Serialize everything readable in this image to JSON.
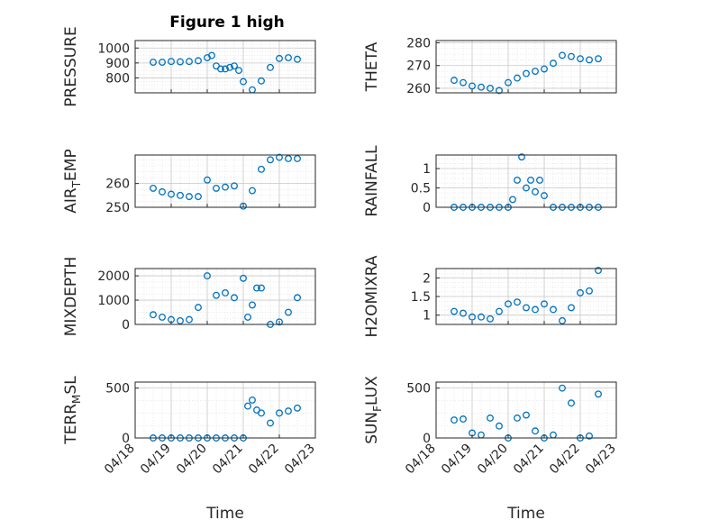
{
  "figure": {
    "title": "Figure 1 high"
  },
  "styles": {
    "marker_color": "#0072BD",
    "axis_color": "#262626",
    "grid_color": "#dcdcdc"
  },
  "chart_data": [
    {
      "id": "pressure",
      "type": "scatter",
      "ylabel": "PRESSURE",
      "ylim": [
        700,
        1050
      ],
      "yticks": [
        800,
        900,
        1000
      ],
      "xlim": [
        "04/18",
        "04/23"
      ],
      "xticks": [
        "04/18",
        "04/19",
        "04/20",
        "04/21",
        "04/22",
        "04/23"
      ],
      "show_xticklabels": false,
      "grid": true,
      "minor_grid": true,
      "x": [
        "04/18 12:00",
        "04/18 18:00",
        "04/19 00:00",
        "04/19 06:00",
        "04/19 12:00",
        "04/19 18:00",
        "04/20 00:00",
        "04/20 03:00",
        "04/20 06:00",
        "04/20 09:00",
        "04/20 12:00",
        "04/20 15:00",
        "04/20 18:00",
        "04/20 21:00",
        "04/21 00:00",
        "04/21 06:00",
        "04/21 12:00",
        "04/21 18:00",
        "04/22 00:00",
        "04/22 06:00",
        "04/22 12:00"
      ],
      "y": [
        905,
        905,
        910,
        908,
        910,
        915,
        935,
        950,
        880,
        860,
        860,
        870,
        880,
        850,
        775,
        720,
        780,
        870,
        930,
        935,
        925
      ]
    },
    {
      "id": "theta",
      "type": "scatter",
      "ylabel": "THETA",
      "ylim": [
        258,
        281
      ],
      "yticks": [
        260,
        270,
        280
      ],
      "xlim": [
        "04/18",
        "04/23"
      ],
      "xticks": [
        "04/18",
        "04/19",
        "04/20",
        "04/21",
        "04/22",
        "04/23"
      ],
      "show_xticklabels": false,
      "grid": true,
      "minor_grid": true,
      "x": [
        "04/18 12:00",
        "04/18 18:00",
        "04/19 00:00",
        "04/19 06:00",
        "04/19 12:00",
        "04/19 18:00",
        "04/20 00:00",
        "04/20 06:00",
        "04/20 12:00",
        "04/20 18:00",
        "04/21 00:00",
        "04/21 06:00",
        "04/21 12:00",
        "04/21 18:00",
        "04/22 00:00",
        "04/22 06:00",
        "04/22 12:00"
      ],
      "y": [
        263.5,
        262.5,
        261,
        260.5,
        260,
        259,
        262.5,
        264.5,
        266.5,
        267.5,
        268.5,
        271,
        274.5,
        274,
        273,
        272.5,
        273
      ]
    },
    {
      "id": "air_temp",
      "type": "scatter",
      "ylabel": "AIR_TEMP",
      "ylim": [
        250,
        272
      ],
      "yticks": [
        250,
        260
      ],
      "xlim": [
        "04/18",
        "04/23"
      ],
      "xticks": [
        "04/18",
        "04/19",
        "04/20",
        "04/21",
        "04/22",
        "04/23"
      ],
      "show_xticklabels": false,
      "grid": true,
      "minor_grid": true,
      "x": [
        "04/18 12:00",
        "04/18 18:00",
        "04/19 00:00",
        "04/19 06:00",
        "04/19 12:00",
        "04/19 18:00",
        "04/20 00:00",
        "04/20 06:00",
        "04/20 12:00",
        "04/20 18:00",
        "04/21 00:00",
        "04/21 06:00",
        "04/21 12:00",
        "04/21 18:00",
        "04/22 00:00",
        "04/22 06:00",
        "04/22 12:00"
      ],
      "y": [
        258,
        256.5,
        255.5,
        255,
        254.5,
        254.5,
        261.5,
        258,
        258.5,
        259,
        250.5,
        257,
        266,
        270,
        271,
        270.5,
        270.5
      ]
    },
    {
      "id": "rainfall",
      "type": "scatter",
      "ylabel": "RAINFALL",
      "ylim": [
        0,
        1.35
      ],
      "yticks": [
        0,
        0.5,
        1
      ],
      "xlim": [
        "04/18",
        "04/23"
      ],
      "xticks": [
        "04/18",
        "04/19",
        "04/20",
        "04/21",
        "04/22",
        "04/23"
      ],
      "show_xticklabels": false,
      "grid": true,
      "minor_grid": true,
      "x": [
        "04/18 12:00",
        "04/18 18:00",
        "04/19 00:00",
        "04/19 06:00",
        "04/19 12:00",
        "04/19 18:00",
        "04/20 00:00",
        "04/20 03:00",
        "04/20 06:00",
        "04/20 09:00",
        "04/20 12:00",
        "04/20 15:00",
        "04/20 18:00",
        "04/20 21:00",
        "04/21 00:00",
        "04/21 06:00",
        "04/21 12:00",
        "04/21 18:00",
        "04/22 00:00",
        "04/22 06:00",
        "04/22 12:00"
      ],
      "y": [
        0,
        0,
        0,
        0,
        0,
        0,
        0,
        0.2,
        0.7,
        1.3,
        0.5,
        0.7,
        0.4,
        0.7,
        0.3,
        0,
        0,
        0,
        0,
        0,
        0
      ]
    },
    {
      "id": "mixdepth",
      "type": "scatter",
      "ylabel": "MIXDEPTH",
      "ylim": [
        0,
        2300
      ],
      "yticks": [
        0,
        1000,
        2000
      ],
      "xlim": [
        "04/18",
        "04/23"
      ],
      "xticks": [
        "04/18",
        "04/19",
        "04/20",
        "04/21",
        "04/22",
        "04/23"
      ],
      "show_xticklabels": false,
      "grid": true,
      "minor_grid": true,
      "x": [
        "04/18 12:00",
        "04/18 18:00",
        "04/19 00:00",
        "04/19 06:00",
        "04/19 12:00",
        "04/19 18:00",
        "04/20 00:00",
        "04/20 06:00",
        "04/20 12:00",
        "04/20 18:00",
        "04/21 00:00",
        "04/21 03:00",
        "04/21 06:00",
        "04/21 09:00",
        "04/21 12:00",
        "04/21 18:00",
        "04/22 00:00",
        "04/22 06:00",
        "04/22 12:00"
      ],
      "y": [
        400,
        300,
        200,
        150,
        200,
        700,
        2000,
        1200,
        1300,
        1100,
        1900,
        300,
        800,
        1500,
        1500,
        0,
        100,
        500,
        1100
      ]
    },
    {
      "id": "h2omixra",
      "type": "scatter",
      "ylabel": "H2OMIXRA",
      "ylim": [
        0.75,
        2.25
      ],
      "yticks": [
        1,
        1.5,
        2
      ],
      "xlim": [
        "04/18",
        "04/23"
      ],
      "xticks": [
        "04/18",
        "04/19",
        "04/20",
        "04/21",
        "04/22",
        "04/23"
      ],
      "show_xticklabels": false,
      "grid": true,
      "minor_grid": true,
      "x": [
        "04/18 12:00",
        "04/18 18:00",
        "04/19 00:00",
        "04/19 06:00",
        "04/19 12:00",
        "04/19 18:00",
        "04/20 00:00",
        "04/20 06:00",
        "04/20 12:00",
        "04/20 18:00",
        "04/21 00:00",
        "04/21 06:00",
        "04/21 12:00",
        "04/21 18:00",
        "04/22 00:00",
        "04/22 06:00",
        "04/22 12:00"
      ],
      "y": [
        1.1,
        1.05,
        0.95,
        0.95,
        0.9,
        1.1,
        1.3,
        1.35,
        1.2,
        1.15,
        1.3,
        1.15,
        0.85,
        1.2,
        1.6,
        1.65,
        2.2
      ]
    },
    {
      "id": "terr_msl",
      "type": "scatter",
      "ylabel": "TERR_MSL",
      "ylim": [
        0,
        560
      ],
      "yticks": [
        0,
        500
      ],
      "xlim": [
        "04/18",
        "04/23"
      ],
      "xticks": [
        "04/18",
        "04/19",
        "04/20",
        "04/21",
        "04/22",
        "04/23"
      ],
      "show_xticklabels": true,
      "xlabel": "Time",
      "grid": true,
      "minor_grid": true,
      "x": [
        "04/18 12:00",
        "04/18 18:00",
        "04/19 00:00",
        "04/19 06:00",
        "04/19 12:00",
        "04/19 18:00",
        "04/20 00:00",
        "04/20 06:00",
        "04/20 12:00",
        "04/20 18:00",
        "04/21 00:00",
        "04/21 03:00",
        "04/21 06:00",
        "04/21 09:00",
        "04/21 12:00",
        "04/21 18:00",
        "04/22 00:00",
        "04/22 06:00",
        "04/22 12:00"
      ],
      "y": [
        0,
        0,
        0,
        0,
        0,
        0,
        0,
        0,
        0,
        0,
        0,
        320,
        380,
        280,
        250,
        150,
        250,
        270,
        300
      ]
    },
    {
      "id": "sun_flux",
      "type": "scatter",
      "ylabel": "SUN_FLUX",
      "ylim": [
        0,
        560
      ],
      "yticks": [
        0,
        500
      ],
      "xlim": [
        "04/18",
        "04/23"
      ],
      "xticks": [
        "04/18",
        "04/19",
        "04/20",
        "04/21",
        "04/22",
        "04/23"
      ],
      "show_xticklabels": true,
      "xlabel": "Time",
      "grid": true,
      "minor_grid": true,
      "x": [
        "04/18 12:00",
        "04/18 18:00",
        "04/19 00:00",
        "04/19 06:00",
        "04/19 12:00",
        "04/19 18:00",
        "04/20 00:00",
        "04/20 06:00",
        "04/20 12:00",
        "04/20 18:00",
        "04/21 00:00",
        "04/21 06:00",
        "04/21 12:00",
        "04/21 18:00",
        "04/22 00:00",
        "04/22 06:00",
        "04/22 12:00"
      ],
      "y": [
        180,
        190,
        50,
        30,
        200,
        120,
        0,
        200,
        230,
        70,
        0,
        30,
        500,
        350,
        0,
        20,
        440
      ]
    }
  ]
}
